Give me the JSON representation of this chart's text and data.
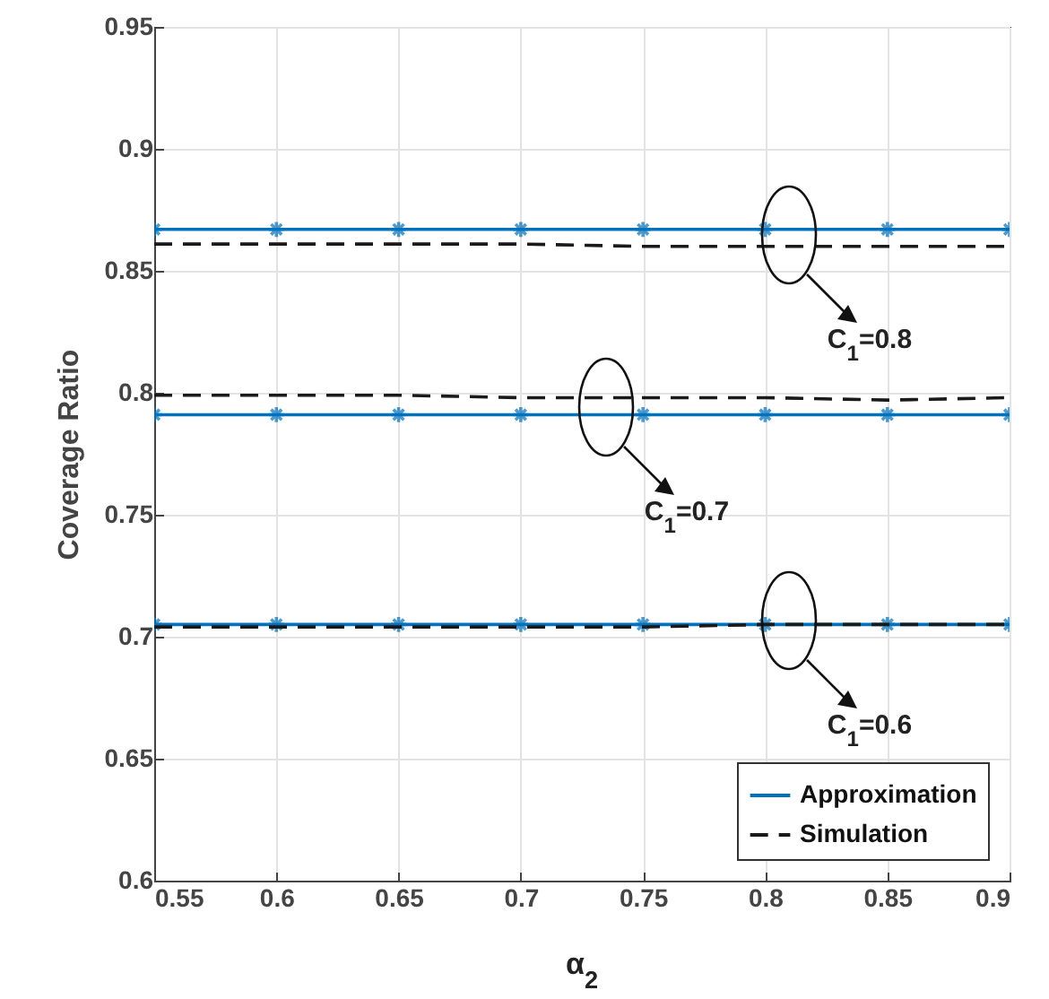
{
  "chart_data": {
    "type": "line",
    "xlabel": "α$_{2}$",
    "ylabel": "Coverage Ratio",
    "x": [
      0.55,
      0.6,
      0.65,
      0.7,
      0.75,
      0.8,
      0.85,
      0.9
    ],
    "series": [
      {
        "name": "Approximation",
        "color": "#0072bd",
        "marker": "cross",
        "line_style": "solid",
        "values": [
          0.867,
          0.867,
          0.867,
          0.867,
          0.867,
          0.867,
          0.867,
          0.867
        ]
      },
      {
        "name": "Simulation",
        "color": "#1a1a1a",
        "marker": "none",
        "line_style": "dashed",
        "values": [
          0.861,
          0.861,
          0.861,
          0.861,
          0.86,
          0.86,
          0.86,
          0.86
        ]
      },
      {
        "color": "#0072bd",
        "marker": "cross",
        "line_style": "solid",
        "values": [
          0.791,
          0.791,
          0.791,
          0.791,
          0.791,
          0.791,
          0.791,
          0.791
        ]
      },
      {
        "color": "#1a1a1a",
        "marker": "none",
        "line_style": "dashed",
        "values": [
          0.799,
          0.799,
          0.799,
          0.798,
          0.798,
          0.798,
          0.797,
          0.798
        ]
      },
      {
        "color": "#0072bd",
        "marker": "cross",
        "line_style": "solid",
        "values": [
          0.705,
          0.705,
          0.705,
          0.705,
          0.705,
          0.705,
          0.705,
          0.705
        ]
      },
      {
        "color": "#1a1a1a",
        "marker": "none",
        "line_style": "dashed",
        "values": [
          0.704,
          0.704,
          0.704,
          0.704,
          0.704,
          0.705,
          0.705,
          0.705
        ]
      }
    ],
    "xlim": [
      0.55,
      0.9
    ],
    "xticks": [
      0.55,
      0.6,
      0.65,
      0.7,
      0.75,
      0.8,
      0.85,
      0.9
    ],
    "ylim": [
      0.6,
      0.95
    ],
    "yticks": [
      0.6,
      0.65,
      0.7,
      0.75,
      0.8,
      0.85,
      0.9,
      0.95
    ],
    "grid": true,
    "legend": "bottom right",
    "annotations": [
      "C$_{1}$=0.8",
      "C$_{1}$=0.7",
      "C$_{1}$=0.6"
    ]
  }
}
